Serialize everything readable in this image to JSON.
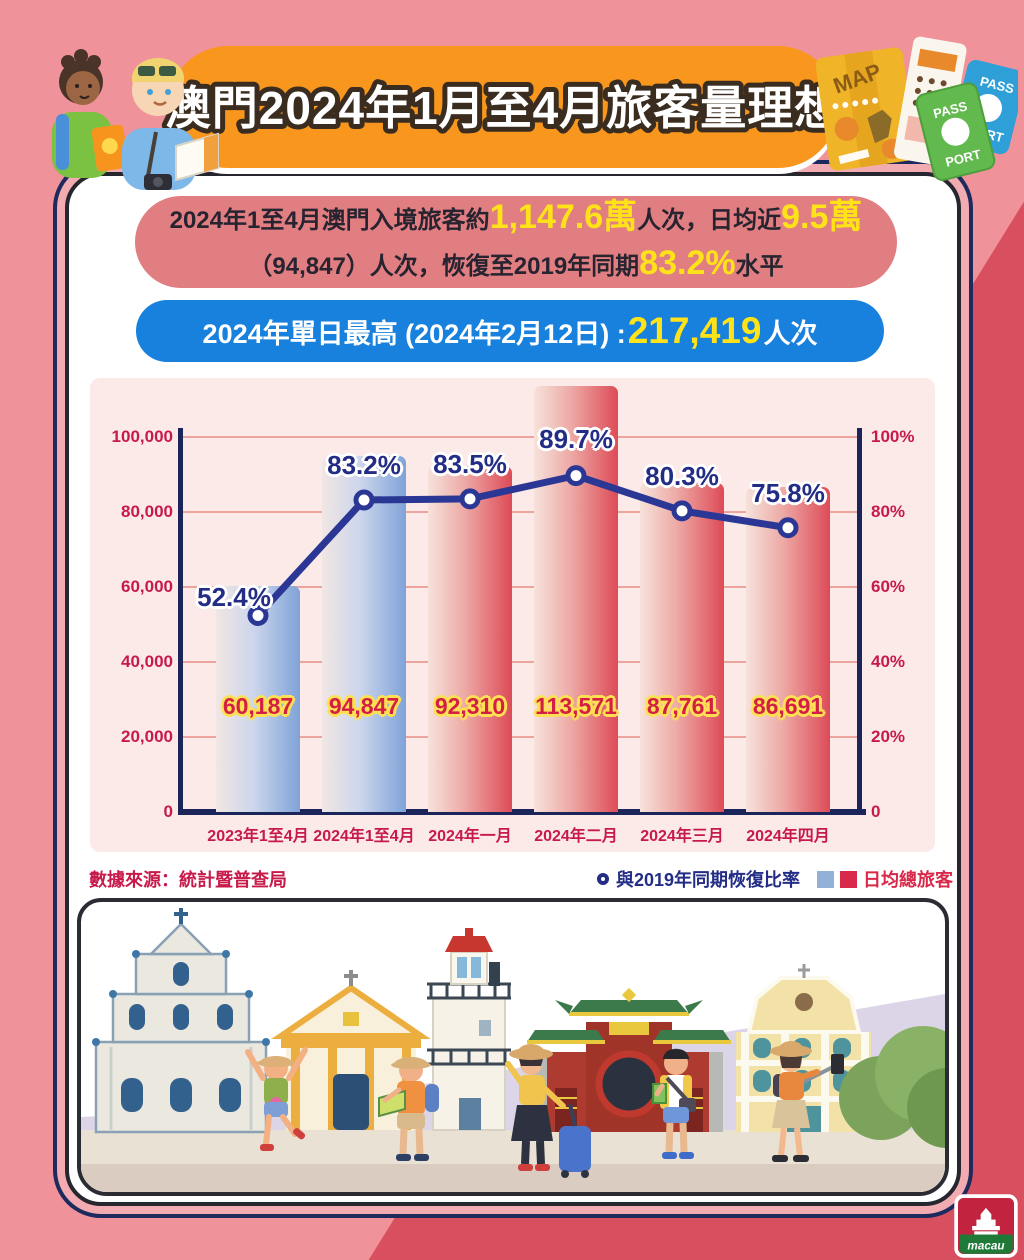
{
  "header": {
    "title": "澳門2024年1月至4月旅客量理想"
  },
  "summary": {
    "p1": "2024年1至4月澳門入境旅客約",
    "v1": "1,147.6萬",
    "p2": "人次，日均近",
    "v2": "9.5萬",
    "p3": "（94,847）人次，恢復至2019年同期",
    "v3": "83.2%",
    "p4": "水平"
  },
  "peak": {
    "prefix": "2024年單日最高 (2024年2月12日) : ",
    "value": "217,419",
    "suffix": "人次"
  },
  "chart_data": {
    "type": "bar",
    "categories": [
      "2023年1至4月",
      "2024年1至4月",
      "2024年一月",
      "2024年二月",
      "2024年三月",
      "2024年四月"
    ],
    "series": [
      {
        "name": "日均總旅客",
        "type": "bar",
        "values": [
          60187,
          94847,
          92310,
          113571,
          87761,
          86691
        ],
        "value_labels": [
          "60,187",
          "94,847",
          "92,310",
          "113,571",
          "87,761",
          "86,691"
        ],
        "bar_styles": [
          "blue",
          "blue",
          "red",
          "red",
          "red",
          "red"
        ]
      },
      {
        "name": "與2019年同期恢復比率",
        "type": "line",
        "axis": "right",
        "values": [
          52.4,
          83.2,
          83.5,
          89.7,
          80.3,
          75.8
        ],
        "point_labels": [
          "52.4%",
          "83.2%",
          "83.5%",
          "89.7%",
          "80.3%",
          "75.8%"
        ]
      }
    ],
    "left_axis": {
      "min": 0,
      "max": 100000,
      "ticks": [
        "100,000",
        "80,000",
        "60,000",
        "40,000",
        "20,000",
        "0"
      ]
    },
    "right_axis": {
      "min": 0,
      "max": 100,
      "ticks": [
        "100%",
        "80%",
        "60%",
        "40%",
        "20%",
        "0"
      ]
    },
    "grid": true,
    "legend_position": "bottom-right"
  },
  "footer": {
    "source": "數據來源：統計暨普查局",
    "legend_line_label": "與2019年同期恢復比率",
    "legend_bar_label": "日均總旅客"
  },
  "logo": {
    "name": "macau"
  },
  "colors": {
    "background_pink": "#f0929a",
    "background_red": "#d8505f",
    "banner_orange": "#f8961d",
    "summary_pill": "#e17e82",
    "peak_pill": "#1781dd",
    "highlight_yellow": "#ffe318",
    "axis_navy": "#1b2559",
    "line_navy": "#2b3794",
    "tick_crimson": "#c81a4a",
    "legend_blue_square": "#92b0d8",
    "legend_red_square": "#d8294a"
  }
}
